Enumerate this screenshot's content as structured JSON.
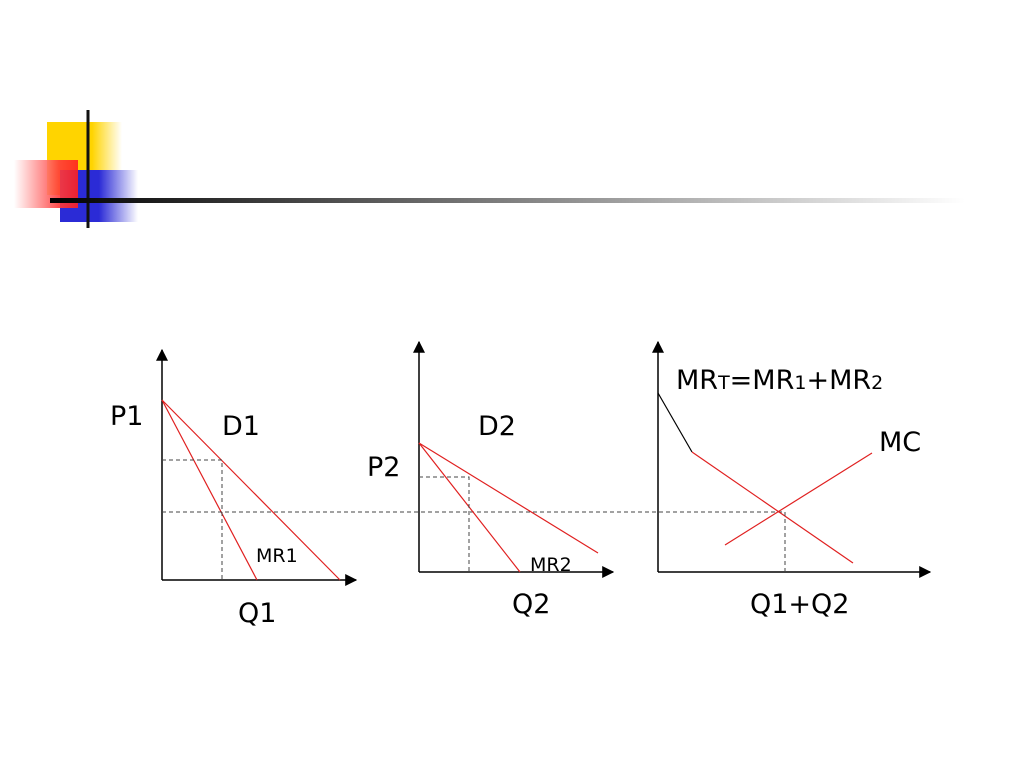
{
  "panels": [
    {
      "price": "P1",
      "demand": "D1",
      "marginal_revenue": "MR1",
      "quantity": "Q1"
    },
    {
      "price": "P2",
      "demand": "D2",
      "marginal_revenue": "MR2",
      "quantity": "Q2"
    },
    {
      "total_marginal_revenue": [
        "MR",
        "T",
        "=MR",
        "1",
        "+MR",
        "2"
      ],
      "marginal_cost": "MC",
      "quantity": "Q1+Q2"
    }
  ]
}
